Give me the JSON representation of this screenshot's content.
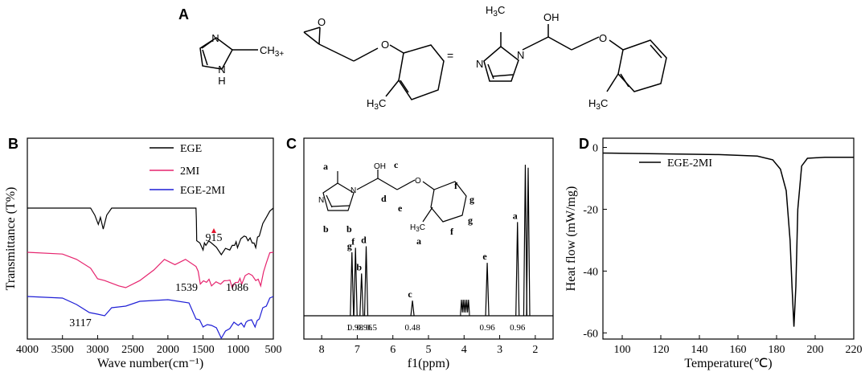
{
  "panel_letters": {
    "a": "A",
    "b": "B",
    "c": "C",
    "d": "D"
  },
  "scheme": {
    "reactant1": {
      "sub_ch3": "CH",
      "sub_3plus": "3+",
      "nh": "N",
      "nh_h": "H",
      "n_ring": "N"
    },
    "reactant2": {
      "o_ether": "O",
      "o_epoxide": "O",
      "h3c": "H",
      "h3c_3": "3",
      "h3c_c": "C",
      "equals": "="
    },
    "product": {
      "h3c": "H",
      "h3c_3": "3",
      "h3c_c": "C",
      "oh": "OH",
      "n1": "N",
      "n2": "N",
      "o_ether": "O",
      "h3c2": "H",
      "h3c2_3": "3",
      "h3c2_c": "C"
    }
  },
  "colors": {
    "black": "#000000",
    "pink": "#e6246e",
    "blue": "#1f1fd6",
    "marker": "#e3152e"
  },
  "chart_data": [
    {
      "type": "line",
      "panel": "B",
      "xlabel": "Wave number(cm⁻¹)",
      "ylabel": "Transmittance (T%)",
      "xlim": [
        4000,
        500
      ],
      "x_ticks": [
        "4000",
        "3500",
        "3000",
        "2500",
        "2000",
        "1500",
        "1000",
        "500"
      ],
      "legend": [
        "EGE",
        "2MI",
        "EGE-2MI"
      ],
      "legend_position": "top-right",
      "series": [
        {
          "name": "EGE",
          "color": "#000000",
          "x": [
            4000,
            3100,
            3040,
            2990,
            2960,
            2920,
            2870,
            2800,
            1600,
            1590,
            1500,
            1460,
            1380,
            1240,
            1120,
            1050,
            1010,
            915,
            860,
            800,
            750,
            700,
            600,
            500
          ],
          "y": [
            0,
            0,
            -0.15,
            -0.35,
            -0.2,
            -0.45,
            -0.15,
            0,
            0,
            -0.7,
            -0.9,
            -0.8,
            -0.75,
            -1.0,
            -0.9,
            -0.8,
            -0.85,
            -0.6,
            -0.7,
            -0.75,
            -0.85,
            -0.6,
            -0.2,
            0
          ]
        },
        {
          "name": "2MI",
          "color": "#e6246e",
          "x": [
            4000,
            3500,
            3300,
            3100,
            3000,
            2900,
            2700,
            2600,
            2400,
            2200,
            2050,
            1900,
            1750,
            1600,
            1539,
            1450,
            1380,
            1250,
            1150,
            1086,
            1000,
            950,
            850,
            750,
            680,
            600,
            500
          ],
          "y": [
            0,
            -0.05,
            -0.2,
            -0.45,
            -0.75,
            -0.8,
            -0.95,
            -1.0,
            -0.8,
            -0.5,
            -0.2,
            -0.35,
            -0.2,
            -0.4,
            -0.9,
            -0.85,
            -0.95,
            -0.9,
            -0.8,
            -1.0,
            -0.85,
            -0.9,
            -0.6,
            -0.8,
            -0.95,
            -0.3,
            0
          ]
        },
        {
          "name": "EGE-2MI",
          "color": "#1f1fd6",
          "x": [
            4000,
            3500,
            3300,
            3117,
            3000,
            2900,
            2800,
            2600,
            2400,
            2000,
            1700,
            1600,
            1500,
            1380,
            1240,
            1120,
            1000,
            915,
            860,
            760,
            700,
            600,
            500
          ],
          "y": [
            0,
            -0.05,
            -0.25,
            -0.5,
            -0.55,
            -0.6,
            -0.35,
            -0.3,
            -0.15,
            -0.1,
            -0.2,
            -0.7,
            -0.95,
            -0.9,
            -1.3,
            -1.0,
            -0.9,
            -0.95,
            -0.75,
            -0.95,
            -0.7,
            -0.3,
            0
          ]
        }
      ],
      "annotations": [
        "915",
        "1539",
        "1086",
        "3117"
      ]
    },
    {
      "type": "line",
      "panel": "C",
      "xlabel": "f1(ppm)",
      "xlim": [
        8.5,
        1.5
      ],
      "x_ticks": [
        "8",
        "7",
        "6",
        "5",
        "4",
        "3",
        "2"
      ],
      "peaks": [
        {
          "ppm": 7.15,
          "height": 0.42,
          "label": "g"
        },
        {
          "ppm": 7.05,
          "height": 0.45,
          "label": "f"
        },
        {
          "ppm": 6.88,
          "height": 0.28,
          "label": "b"
        },
        {
          "ppm": 6.75,
          "height": 0.46,
          "label": "d"
        },
        {
          "ppm": 5.45,
          "height": 0.1,
          "label": "c"
        },
        {
          "ppm": 3.35,
          "height": 0.35,
          "label": "e"
        },
        {
          "ppm": 2.5,
          "height": 0.62,
          "label": "a"
        },
        {
          "ppm": 2.28,
          "height": 1.0,
          "label": ""
        },
        {
          "ppm": 2.2,
          "height": 0.98,
          "label": ""
        }
      ],
      "multiplet_ppm": [
        4.1,
        3.85
      ],
      "integrals": [
        "1",
        "0.98",
        "0.96",
        "0.5",
        "0.48",
        "0.96",
        "0.96"
      ],
      "structure_labels": {
        "a_top": "a",
        "oh": "OH",
        "c": "c",
        "d": "d",
        "e": "e",
        "f_top": "f",
        "g_top": "g",
        "g_bot": "g",
        "f_bot": "f",
        "b1": "b",
        "b2": "b",
        "a_bot": "a",
        "n1": "N",
        "n2": "N",
        "o": "O",
        "h3c": "H",
        "h3c_3": "3",
        "h3c_c": "C"
      }
    },
    {
      "type": "line",
      "panel": "D",
      "xlabel": "Temperature(℃)",
      "ylabel": "Heat flow (mW/mg)",
      "xlim": [
        90,
        220
      ],
      "ylim": [
        -62,
        3
      ],
      "x_ticks": [
        "100",
        "120",
        "140",
        "160",
        "180",
        "200",
        "220"
      ],
      "y_ticks": [
        "0",
        "-20",
        "-40",
        "-60"
      ],
      "legend": [
        "EGE-2MI"
      ],
      "legend_position": "top-left",
      "series": [
        {
          "name": "EGE-2MI",
          "color": "#000000",
          "x": [
            90,
            150,
            170,
            178,
            182,
            185,
            187,
            188,
            189,
            190,
            191,
            193,
            196,
            205,
            220
          ],
          "y": [
            -1.8,
            -2.3,
            -2.8,
            -4,
            -7,
            -14,
            -30,
            -45,
            -58,
            -45,
            -20,
            -6,
            -3.5,
            -3.2,
            -3.2
          ]
        }
      ]
    }
  ]
}
